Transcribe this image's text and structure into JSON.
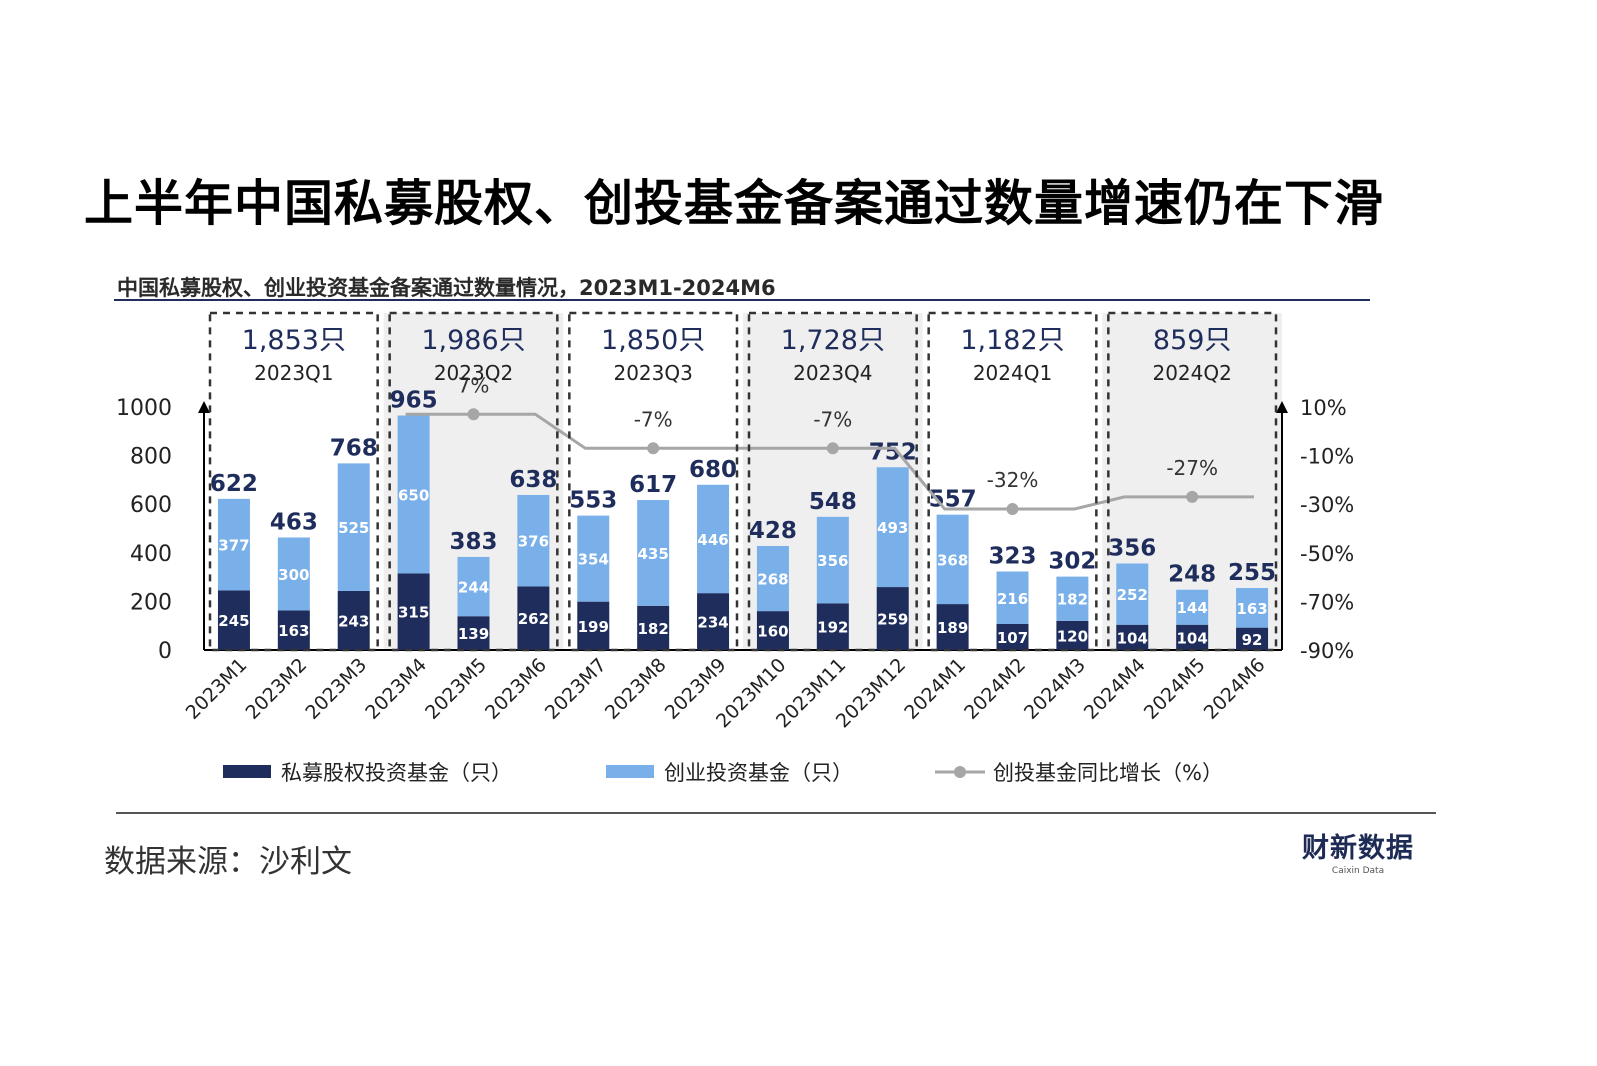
{
  "title": "上半年中国私募股权、创投基金备案通过数量增速仍在下滑",
  "source": "数据来源：沙利文",
  "logo": {
    "cn": "财新数据",
    "en": "Caixin Data"
  },
  "colors": {
    "pe": "#1f2d5c",
    "vc": "#7ab0ea",
    "line": "#a6a6a6",
    "shade": "#efefef",
    "rule": "#1f2d5c"
  },
  "chart_data": {
    "type": "bar",
    "subtitle": "中国私募股权、创业投资基金备案通过数量情况，2023M1-2024M6",
    "categories": [
      "2023M1",
      "2023M2",
      "2023M3",
      "2023M4",
      "2023M5",
      "2023M6",
      "2023M7",
      "2023M8",
      "2023M9",
      "2023M10",
      "2023M11",
      "2023M12",
      "2024M1",
      "2024M2",
      "2024M3",
      "2024M4",
      "2024M5",
      "2024M6"
    ],
    "stacked": true,
    "series": [
      {
        "name": "私募股权投资基金（只）",
        "type": "bar",
        "color": "#1f2d5c",
        "values": [
          245,
          163,
          243,
          315,
          139,
          262,
          199,
          182,
          234,
          160,
          192,
          259,
          189,
          107,
          120,
          104,
          104,
          92
        ]
      },
      {
        "name": "创业投资基金（只）",
        "type": "bar",
        "color": "#7ab0ea",
        "values": [
          377,
          300,
          525,
          650,
          244,
          376,
          354,
          435,
          446,
          268,
          356,
          493,
          368,
          216,
          182,
          252,
          144,
          163
        ]
      },
      {
        "name": "创投基金同比增长（%）",
        "type": "line",
        "axis": "right",
        "color": "#a6a6a6",
        "quarter_values": [
          7,
          -7,
          -7,
          -32,
          -27
        ],
        "labels": [
          "7%",
          "-7%",
          "-7%",
          "-32%",
          "-27%"
        ]
      }
    ],
    "totals": [
      622,
      463,
      768,
      965,
      383,
      638,
      553,
      617,
      680,
      428,
      548,
      752,
      557,
      323,
      302,
      356,
      248,
      255
    ],
    "quarters": [
      {
        "label": "2023Q1",
        "total": "1,853只"
      },
      {
        "label": "2023Q2",
        "total": "1,986只"
      },
      {
        "label": "2023Q3",
        "total": "1,850只"
      },
      {
        "label": "2023Q4",
        "total": "1,728只"
      },
      {
        "label": "2024Q1",
        "total": "1,182只"
      },
      {
        "label": "2024Q2",
        "total": "859只"
      }
    ],
    "left_axis": {
      "ylim": [
        0,
        1000
      ],
      "ticks": [
        "0",
        "200",
        "400",
        "600",
        "800",
        "1000"
      ]
    },
    "right_axis": {
      "ylim": [
        -90,
        10
      ],
      "ticks": [
        "10%",
        "-10%",
        "-30%",
        "-50%",
        "-70%",
        "-90%"
      ]
    },
    "legend": [
      "私募股权投资基金（只）",
      "创业投资基金（只）",
      "创投基金同比增长（%）"
    ],
    "legend_position": "bottom"
  }
}
